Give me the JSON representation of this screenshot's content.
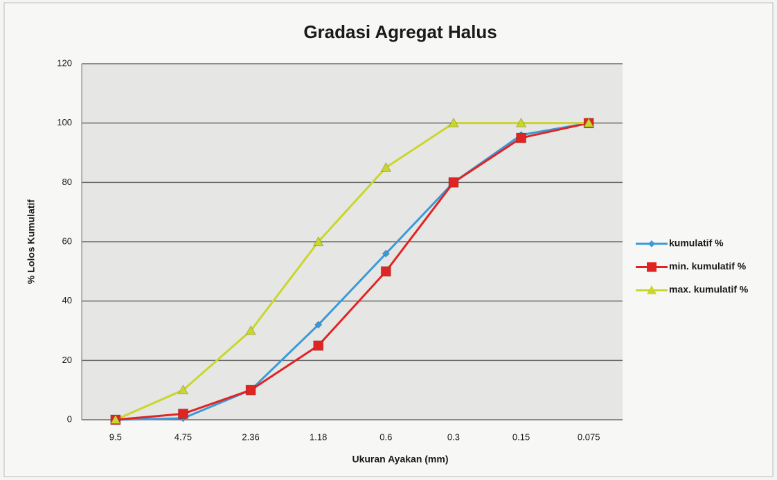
{
  "chart_data": {
    "type": "line",
    "title": "Gradasi Agregat Halus",
    "x_label": "Ukuran Ayakan (mm)",
    "y_label": "% Lolos Kumulatif",
    "categories": [
      "9.5",
      "4.75",
      "2.36",
      "1.18",
      "0.6",
      "0.3",
      "0.15",
      "0.075"
    ],
    "series": [
      {
        "name": "kumulatif %",
        "color": "#3a9ad9",
        "marker": "diamond",
        "values": [
          0,
          0.5,
          10,
          32,
          56,
          80,
          96,
          100
        ]
      },
      {
        "name": "min. kumulatif %",
        "color": "#e02424",
        "marker": "square",
        "values": [
          0,
          2,
          10,
          25,
          50,
          80,
          95,
          100
        ]
      },
      {
        "name": "max. kumulatif %",
        "color": "#c9d62c",
        "marker": "triangle",
        "values": [
          0,
          10,
          30,
          60,
          85,
          100,
          100,
          100
        ]
      }
    ],
    "ylim": [
      0,
      120
    ],
    "yticks": [
      0,
      20,
      40,
      60,
      80,
      100,
      120
    ],
    "grid": true,
    "legend": "right"
  }
}
